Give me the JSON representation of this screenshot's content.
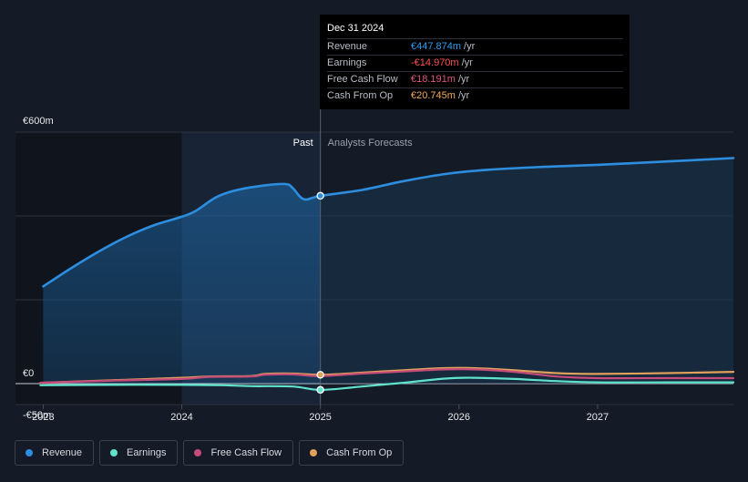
{
  "chart_data": {
    "type": "line",
    "x_ticks": [
      "2023",
      "2024",
      "2025",
      "2026",
      "2027"
    ],
    "x_tick_values": [
      2023,
      2024,
      2025,
      2026,
      2027
    ],
    "xlim": [
      2022.8,
      2027.98
    ],
    "ylim": [
      -50,
      600
    ],
    "y_ticks": [
      {
        "value": 600,
        "label": "€600m"
      },
      {
        "value": 0,
        "label": "€0"
      },
      {
        "value": -50,
        "label": "-€50m"
      }
    ],
    "divider_x": 2025.0,
    "past_label": "Past",
    "forecast_label": "Analysts Forecasts",
    "series": [
      {
        "name": "Revenue",
        "color": "#2d8ee0",
        "fill": true,
        "points": [
          [
            2023.0,
            232
          ],
          [
            2023.2,
            275
          ],
          [
            2023.4,
            315
          ],
          [
            2023.6,
            350
          ],
          [
            2023.8,
            378
          ],
          [
            2024.0,
            398
          ],
          [
            2024.1,
            412
          ],
          [
            2024.25,
            445
          ],
          [
            2024.4,
            462
          ],
          [
            2024.6,
            473
          ],
          [
            2024.75,
            476
          ],
          [
            2024.8,
            467
          ],
          [
            2024.88,
            440
          ],
          [
            2025.0,
            448
          ],
          [
            2025.3,
            462
          ],
          [
            2025.6,
            483
          ],
          [
            2025.9,
            500
          ],
          [
            2026.2,
            510
          ],
          [
            2026.6,
            517
          ],
          [
            2027.0,
            522
          ],
          [
            2027.5,
            530
          ],
          [
            2027.98,
            538
          ]
        ]
      },
      {
        "name": "Earnings",
        "color": "#5fe3cc",
        "fill": false,
        "points": [
          [
            2022.98,
            -4
          ],
          [
            2023.5,
            -3
          ],
          [
            2024.0,
            -3
          ],
          [
            2024.3,
            -4
          ],
          [
            2024.5,
            -6
          ],
          [
            2024.8,
            -7
          ],
          [
            2025.0,
            -15
          ],
          [
            2025.3,
            -7
          ],
          [
            2025.6,
            2
          ],
          [
            2025.9,
            12
          ],
          [
            2026.1,
            14
          ],
          [
            2026.4,
            11
          ],
          [
            2026.7,
            6
          ],
          [
            2027.0,
            3
          ],
          [
            2027.5,
            3
          ],
          [
            2027.98,
            3
          ]
        ]
      },
      {
        "name": "Free Cash Flow",
        "color": "#c44b7a",
        "fill": false,
        "points": [
          [
            2022.98,
            2
          ],
          [
            2023.5,
            7
          ],
          [
            2024.0,
            11
          ],
          [
            2024.2,
            16
          ],
          [
            2024.5,
            17
          ],
          [
            2024.6,
            21
          ],
          [
            2024.8,
            22
          ],
          [
            2025.0,
            18
          ],
          [
            2025.3,
            24
          ],
          [
            2025.6,
            29
          ],
          [
            2025.9,
            34
          ],
          [
            2026.1,
            34
          ],
          [
            2026.4,
            28
          ],
          [
            2026.7,
            17
          ],
          [
            2027.0,
            13
          ],
          [
            2027.5,
            13
          ],
          [
            2027.98,
            13
          ]
        ]
      },
      {
        "name": "Cash From Op",
        "color": "#e0a05a",
        "fill": false,
        "points": [
          [
            2022.98,
            2
          ],
          [
            2023.5,
            8
          ],
          [
            2024.0,
            14
          ],
          [
            2024.2,
            17
          ],
          [
            2024.5,
            18
          ],
          [
            2024.6,
            23
          ],
          [
            2024.8,
            24
          ],
          [
            2025.0,
            21
          ],
          [
            2025.3,
            26
          ],
          [
            2025.6,
            32
          ],
          [
            2025.9,
            37
          ],
          [
            2026.1,
            37
          ],
          [
            2026.4,
            32
          ],
          [
            2026.7,
            25
          ],
          [
            2027.0,
            23
          ],
          [
            2027.5,
            25
          ],
          [
            2027.98,
            28
          ]
        ]
      }
    ],
    "markers": [
      {
        "series": "Revenue",
        "x": 2025.0,
        "y": 448
      },
      {
        "series": "Cash From Op",
        "x": 2025.0,
        "y": 21
      },
      {
        "series": "Earnings",
        "x": 2025.0,
        "y": -15
      }
    ]
  },
  "tooltip": {
    "title": "Dec 31 2024",
    "rows": [
      {
        "label": "Revenue",
        "value": "€447.874m",
        "unit": "/yr",
        "color": "#2d9cf0"
      },
      {
        "label": "Earnings",
        "value": "-€14.970m",
        "unit": "/yr",
        "color": "#ff4f4f"
      },
      {
        "label": "Free Cash Flow",
        "value": "€18.191m",
        "unit": "/yr",
        "color": "#e0567f"
      },
      {
        "label": "Cash From Op",
        "value": "€20.745m",
        "unit": "/yr",
        "color": "#f0a858"
      }
    ]
  },
  "legend": [
    {
      "label": "Revenue",
      "color": "#2d8ee0"
    },
    {
      "label": "Earnings",
      "color": "#5fe3cc"
    },
    {
      "label": "Free Cash Flow",
      "color": "#c44b7a"
    },
    {
      "label": "Cash From Op",
      "color": "#e0a05a"
    }
  ]
}
